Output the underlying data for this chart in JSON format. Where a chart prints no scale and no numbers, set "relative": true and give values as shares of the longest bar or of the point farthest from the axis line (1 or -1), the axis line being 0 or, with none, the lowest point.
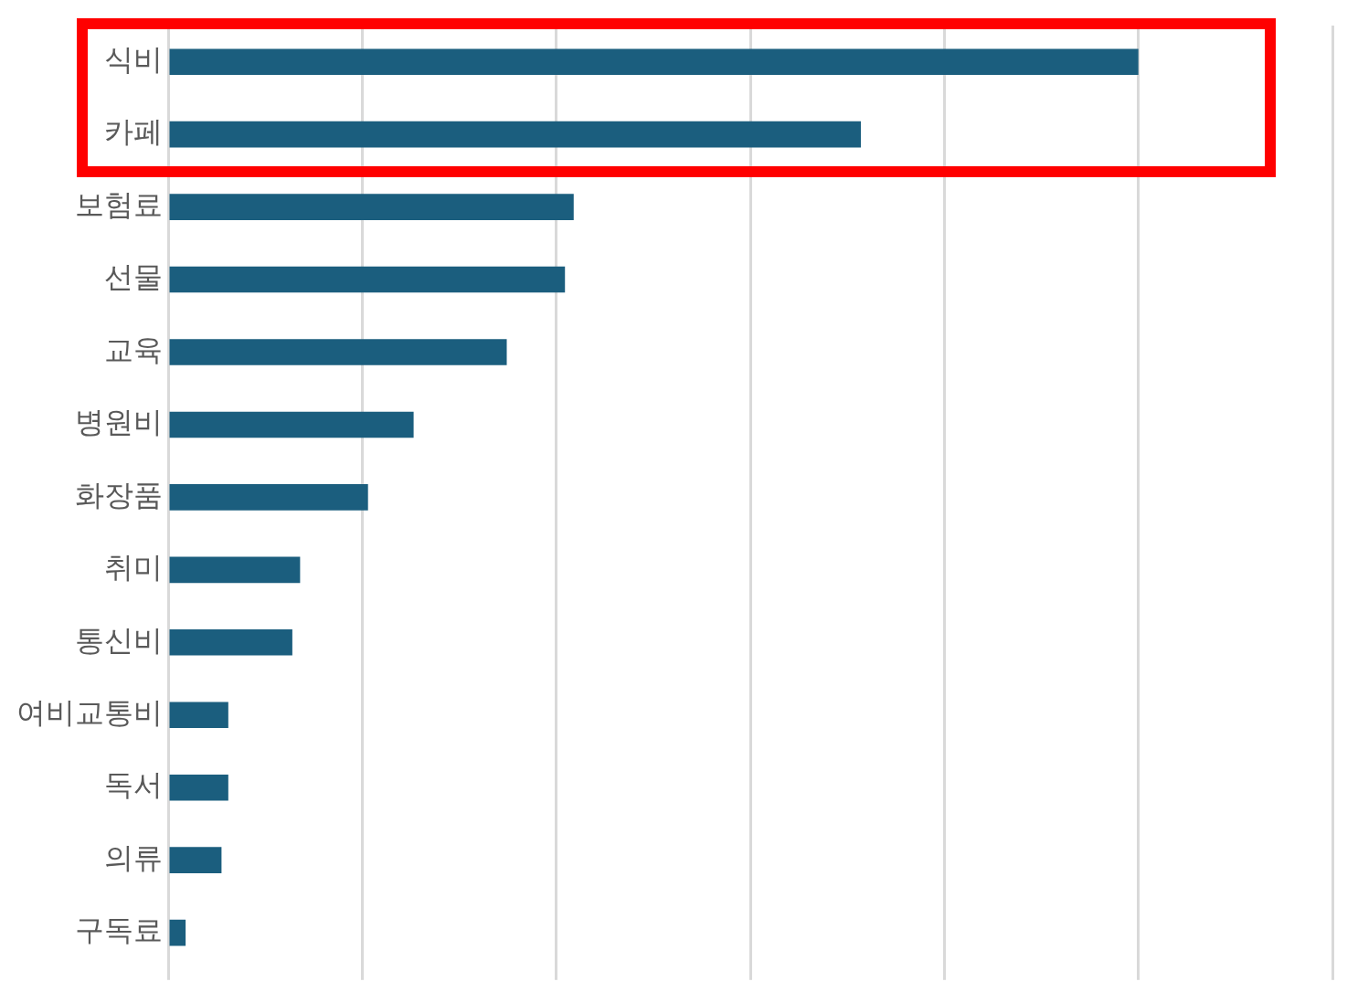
{
  "chart_data": {
    "type": "bar",
    "orientation": "horizontal",
    "relative": true,
    "grid": "x",
    "legend": false,
    "categories": [
      "식비",
      "카페",
      "보험료",
      "선물",
      "교육",
      "병원비",
      "화장품",
      "취미",
      "통신비",
      "여비교통비",
      "독서",
      "의류",
      "구독료"
    ],
    "values": [
      1,
      0.714,
      0.418,
      0.409,
      0.349,
      0.253,
      0.206,
      0.136,
      0.128,
      0.062,
      0.062,
      0.055,
      0.018
    ],
    "color": "#1b5e7e"
  }
}
